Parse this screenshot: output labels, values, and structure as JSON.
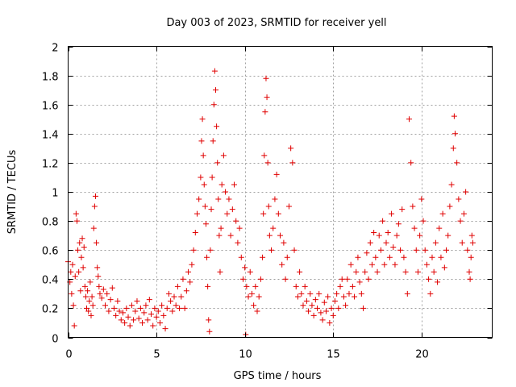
{
  "chart_data": {
    "type": "scatter",
    "title": "Day 003 of 2023, SRMTID for receiver yell",
    "xlabel": "GPS time / hours",
    "ylabel": "SRMTID / TECUs",
    "xlim": [
      0,
      24
    ],
    "ylim": [
      0,
      2
    ],
    "x_ticks": [
      0,
      5,
      10,
      15,
      20
    ],
    "x_tick_labels": [
      "0",
      "5",
      "10",
      "15",
      "20"
    ],
    "y_ticks": [
      0,
      0.2,
      0.4,
      0.6,
      0.8,
      1,
      1.2,
      1.4,
      1.6,
      1.8,
      2
    ],
    "y_tick_labels": [
      "0",
      "0.2",
      "0.4",
      "0.6",
      "0.8",
      "1",
      "1.2",
      "1.4",
      "1.6",
      "1.8",
      "2"
    ],
    "grid": true,
    "marker": "plus",
    "color": "#e00000",
    "series": [
      {
        "name": "SRMTID",
        "points": [
          [
            0.0,
            0.52
          ],
          [
            0.1,
            0.38
          ],
          [
            0.15,
            0.45
          ],
          [
            0.2,
            0.3
          ],
          [
            0.25,
            0.5
          ],
          [
            0.3,
            0.22
          ],
          [
            0.35,
            0.08
          ],
          [
            0.4,
            0.42
          ],
          [
            0.45,
            0.85
          ],
          [
            0.5,
            0.8
          ],
          [
            0.55,
            0.6
          ],
          [
            0.6,
            0.45
          ],
          [
            0.65,
            0.65
          ],
          [
            0.7,
            0.32
          ],
          [
            0.75,
            0.55
          ],
          [
            0.8,
            0.68
          ],
          [
            0.85,
            0.48
          ],
          [
            0.9,
            0.62
          ],
          [
            0.95,
            0.35
          ],
          [
            1.0,
            0.28
          ],
          [
            1.05,
            0.2
          ],
          [
            1.1,
            0.32
          ],
          [
            1.15,
            0.18
          ],
          [
            1.2,
            0.25
          ],
          [
            1.25,
            0.38
          ],
          [
            1.3,
            0.15
          ],
          [
            1.35,
            0.28
          ],
          [
            1.4,
            0.22
          ],
          [
            1.45,
            0.75
          ],
          [
            1.5,
            0.9
          ],
          [
            1.55,
            0.97
          ],
          [
            1.6,
            0.65
          ],
          [
            1.65,
            0.48
          ],
          [
            1.7,
            0.42
          ],
          [
            1.75,
            0.35
          ],
          [
            1.8,
            0.3
          ],
          [
            1.9,
            0.27
          ],
          [
            2.0,
            0.33
          ],
          [
            2.1,
            0.22
          ],
          [
            2.2,
            0.3
          ],
          [
            2.3,
            0.18
          ],
          [
            2.4,
            0.26
          ],
          [
            2.5,
            0.34
          ],
          [
            2.6,
            0.2
          ],
          [
            2.7,
            0.15
          ],
          [
            2.8,
            0.25
          ],
          [
            2.9,
            0.18
          ],
          [
            3.0,
            0.12
          ],
          [
            3.1,
            0.17
          ],
          [
            3.2,
            0.1
          ],
          [
            3.3,
            0.2
          ],
          [
            3.4,
            0.14
          ],
          [
            3.5,
            0.08
          ],
          [
            3.6,
            0.22
          ],
          [
            3.7,
            0.12
          ],
          [
            3.8,
            0.18
          ],
          [
            3.9,
            0.25
          ],
          [
            4.0,
            0.13
          ],
          [
            4.1,
            0.2
          ],
          [
            4.2,
            0.1
          ],
          [
            4.3,
            0.17
          ],
          [
            4.4,
            0.22
          ],
          [
            4.5,
            0.12
          ],
          [
            4.6,
            0.26
          ],
          [
            4.7,
            0.16
          ],
          [
            4.8,
            0.08
          ],
          [
            4.9,
            0.2
          ],
          [
            5.0,
            0.14
          ],
          [
            5.1,
            0.18
          ],
          [
            5.2,
            0.1
          ],
          [
            5.3,
            0.22
          ],
          [
            5.4,
            0.15
          ],
          [
            5.5,
            0.06
          ],
          [
            5.6,
            0.2
          ],
          [
            5.7,
            0.3
          ],
          [
            5.8,
            0.25
          ],
          [
            5.9,
            0.18
          ],
          [
            6.0,
            0.28
          ],
          [
            6.1,
            0.22
          ],
          [
            6.2,
            0.35
          ],
          [
            6.3,
            0.2
          ],
          [
            6.4,
            0.28
          ],
          [
            6.5,
            0.4
          ],
          [
            6.6,
            0.2
          ],
          [
            6.7,
            0.32
          ],
          [
            6.8,
            0.45
          ],
          [
            6.9,
            0.38
          ],
          [
            7.0,
            0.5
          ],
          [
            7.1,
            0.6
          ],
          [
            7.2,
            0.72
          ],
          [
            7.3,
            0.85
          ],
          [
            7.4,
            0.95
          ],
          [
            7.5,
            1.1
          ],
          [
            7.55,
            1.35
          ],
          [
            7.6,
            1.5
          ],
          [
            7.65,
            1.25
          ],
          [
            7.7,
            1.05
          ],
          [
            7.75,
            0.9
          ],
          [
            7.8,
            0.78
          ],
          [
            7.85,
            0.55
          ],
          [
            7.9,
            0.35
          ],
          [
            7.95,
            0.12
          ],
          [
            8.0,
            0.04
          ],
          [
            8.05,
            0.6
          ],
          [
            8.1,
            0.88
          ],
          [
            8.15,
            1.1
          ],
          [
            8.2,
            1.35
          ],
          [
            8.25,
            1.6
          ],
          [
            8.3,
            1.83
          ],
          [
            8.35,
            1.7
          ],
          [
            8.4,
            1.45
          ],
          [
            8.45,
            1.2
          ],
          [
            8.5,
            0.95
          ],
          [
            8.55,
            0.7
          ],
          [
            8.6,
            0.45
          ],
          [
            8.65,
            0.75
          ],
          [
            8.7,
            1.05
          ],
          [
            8.8,
            1.25
          ],
          [
            8.9,
            1.0
          ],
          [
            9.0,
            0.85
          ],
          [
            9.1,
            0.95
          ],
          [
            9.2,
            0.7
          ],
          [
            9.3,
            0.88
          ],
          [
            9.4,
            1.05
          ],
          [
            9.5,
            0.8
          ],
          [
            9.6,
            0.65
          ],
          [
            9.7,
            0.75
          ],
          [
            9.8,
            0.55
          ],
          [
            9.9,
            0.4
          ],
          [
            10.0,
            0.48
          ],
          [
            10.05,
            0.02
          ],
          [
            10.1,
            0.35
          ],
          [
            10.2,
            0.28
          ],
          [
            10.3,
            0.45
          ],
          [
            10.4,
            0.3
          ],
          [
            10.5,
            0.22
          ],
          [
            10.6,
            0.35
          ],
          [
            10.7,
            0.18
          ],
          [
            10.8,
            0.28
          ],
          [
            10.9,
            0.4
          ],
          [
            11.0,
            0.55
          ],
          [
            11.05,
            0.85
          ],
          [
            11.1,
            1.25
          ],
          [
            11.15,
            1.55
          ],
          [
            11.2,
            1.78
          ],
          [
            11.25,
            1.65
          ],
          [
            11.3,
            1.2
          ],
          [
            11.35,
            0.9
          ],
          [
            11.4,
            0.7
          ],
          [
            11.5,
            0.6
          ],
          [
            11.6,
            0.75
          ],
          [
            11.7,
            0.95
          ],
          [
            11.8,
            1.12
          ],
          [
            11.9,
            0.85
          ],
          [
            12.0,
            0.7
          ],
          [
            12.1,
            0.5
          ],
          [
            12.2,
            0.65
          ],
          [
            12.3,
            0.4
          ],
          [
            12.4,
            0.55
          ],
          [
            12.5,
            0.9
          ],
          [
            12.6,
            1.3
          ],
          [
            12.7,
            1.2
          ],
          [
            12.8,
            0.6
          ],
          [
            12.9,
            0.35
          ],
          [
            13.0,
            0.28
          ],
          [
            13.1,
            0.45
          ],
          [
            13.2,
            0.3
          ],
          [
            13.3,
            0.22
          ],
          [
            13.4,
            0.35
          ],
          [
            13.5,
            0.25
          ],
          [
            13.6,
            0.18
          ],
          [
            13.7,
            0.3
          ],
          [
            13.8,
            0.22
          ],
          [
            13.9,
            0.15
          ],
          [
            14.0,
            0.26
          ],
          [
            14.1,
            0.2
          ],
          [
            14.2,
            0.3
          ],
          [
            14.3,
            0.17
          ],
          [
            14.4,
            0.12
          ],
          [
            14.5,
            0.24
          ],
          [
            14.6,
            0.18
          ],
          [
            14.7,
            0.28
          ],
          [
            14.8,
            0.1
          ],
          [
            14.9,
            0.2
          ],
          [
            15.0,
            0.15
          ],
          [
            15.1,
            0.25
          ],
          [
            15.2,
            0.3
          ],
          [
            15.3,
            0.2
          ],
          [
            15.4,
            0.35
          ],
          [
            15.5,
            0.4
          ],
          [
            15.6,
            0.28
          ],
          [
            15.7,
            0.22
          ],
          [
            15.8,
            0.4
          ],
          [
            15.9,
            0.3
          ],
          [
            16.0,
            0.5
          ],
          [
            16.1,
            0.35
          ],
          [
            16.2,
            0.28
          ],
          [
            16.3,
            0.45
          ],
          [
            16.4,
            0.55
          ],
          [
            16.5,
            0.38
          ],
          [
            16.6,
            0.3
          ],
          [
            16.7,
            0.2
          ],
          [
            16.8,
            0.45
          ],
          [
            16.9,
            0.58
          ],
          [
            17.0,
            0.4
          ],
          [
            17.1,
            0.65
          ],
          [
            17.2,
            0.5
          ],
          [
            17.3,
            0.72
          ],
          [
            17.4,
            0.55
          ],
          [
            17.5,
            0.45
          ],
          [
            17.6,
            0.7
          ],
          [
            17.7,
            0.6
          ],
          [
            17.8,
            0.8
          ],
          [
            17.9,
            0.5
          ],
          [
            18.0,
            0.65
          ],
          [
            18.1,
            0.72
          ],
          [
            18.2,
            0.55
          ],
          [
            18.3,
            0.85
          ],
          [
            18.4,
            0.62
          ],
          [
            18.5,
            0.5
          ],
          [
            18.6,
            0.7
          ],
          [
            18.7,
            0.78
          ],
          [
            18.8,
            0.6
          ],
          [
            18.9,
            0.88
          ],
          [
            19.0,
            0.55
          ],
          [
            19.1,
            0.45
          ],
          [
            19.2,
            0.3
          ],
          [
            19.3,
            1.5
          ],
          [
            19.4,
            1.2
          ],
          [
            19.5,
            0.9
          ],
          [
            19.6,
            0.75
          ],
          [
            19.7,
            0.6
          ],
          [
            19.8,
            0.45
          ],
          [
            19.9,
            0.7
          ],
          [
            20.0,
            0.95
          ],
          [
            20.1,
            0.8
          ],
          [
            20.2,
            0.6
          ],
          [
            20.3,
            0.5
          ],
          [
            20.4,
            0.4
          ],
          [
            20.5,
            0.3
          ],
          [
            20.6,
            0.55
          ],
          [
            20.7,
            0.45
          ],
          [
            20.8,
            0.65
          ],
          [
            20.9,
            0.38
          ],
          [
            21.0,
            0.75
          ],
          [
            21.1,
            0.55
          ],
          [
            21.2,
            0.85
          ],
          [
            21.3,
            0.48
          ],
          [
            21.4,
            0.6
          ],
          [
            21.5,
            0.7
          ],
          [
            21.6,
            0.9
          ],
          [
            21.7,
            1.05
          ],
          [
            21.8,
            1.3
          ],
          [
            21.85,
            1.52
          ],
          [
            21.9,
            1.4
          ],
          [
            22.0,
            1.2
          ],
          [
            22.1,
            0.95
          ],
          [
            22.2,
            0.8
          ],
          [
            22.3,
            0.65
          ],
          [
            22.4,
            0.85
          ],
          [
            22.5,
            1.0
          ],
          [
            22.6,
            0.6
          ],
          [
            22.7,
            0.45
          ],
          [
            22.75,
            0.4
          ],
          [
            22.8,
            0.55
          ],
          [
            22.85,
            0.7
          ],
          [
            22.9,
            0.65
          ]
        ]
      }
    ]
  }
}
